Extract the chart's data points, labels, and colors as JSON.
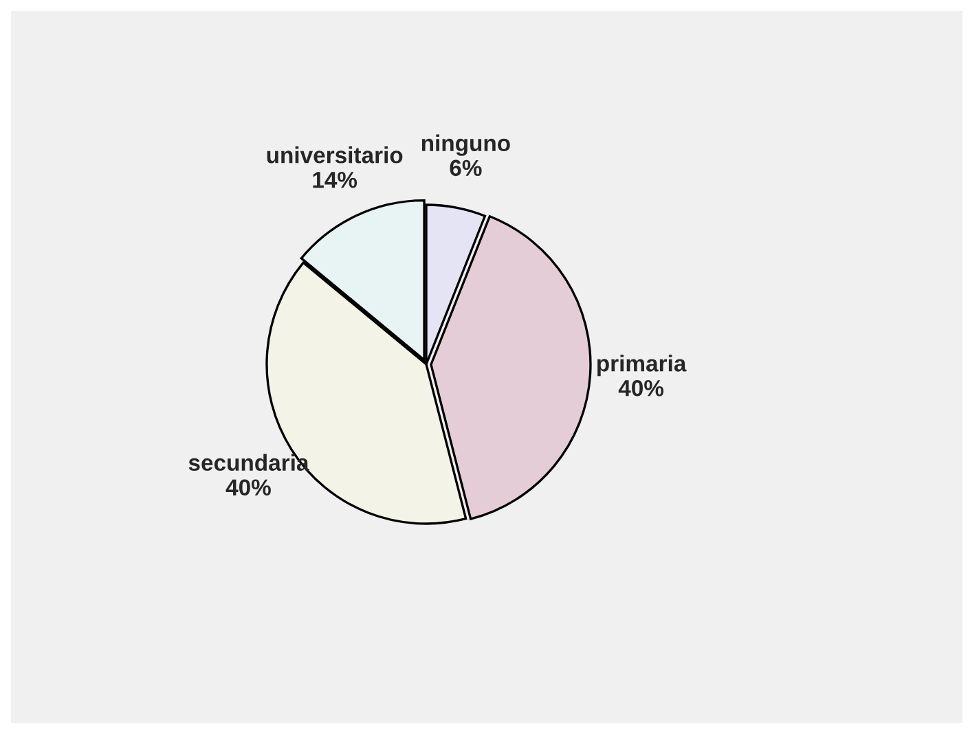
{
  "chart_data": {
    "type": "pie",
    "categories": [
      "ninguno",
      "primaria",
      "secundaria",
      "universitario"
    ],
    "values": [
      6,
      40,
      40,
      14
    ],
    "value_labels": [
      "6%",
      "40%",
      "40%",
      "14%"
    ],
    "colors": [
      "#e4e4f4",
      "#e5cdd8",
      "#f3f3e8",
      "#e8f3f3"
    ],
    "legend": false
  }
}
